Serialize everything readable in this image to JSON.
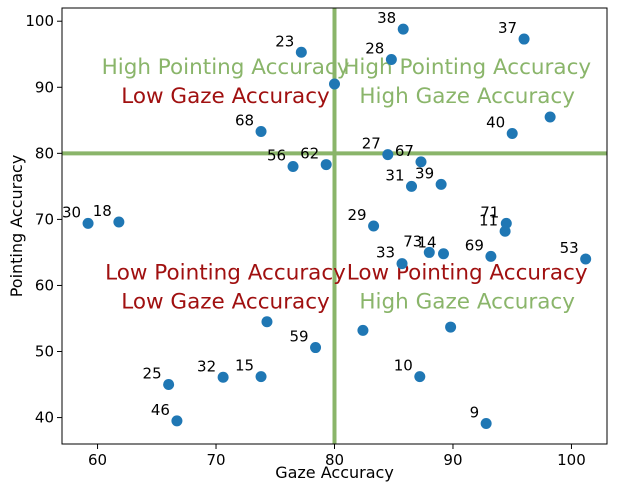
{
  "chart_data": {
    "type": "scatter",
    "xlabel": "Gaze Accuracy",
    "ylabel": "Pointing Accuracy",
    "xlim": [
      57,
      103
    ],
    "ylim": [
      36,
      102
    ],
    "xticks": [
      "60",
      "70",
      "80",
      "90",
      "100"
    ],
    "yticks": [
      "40",
      "50",
      "60",
      "70",
      "80",
      "90",
      "100"
    ],
    "grid": false,
    "point_color": "#1f77b4",
    "threshold_color": "#8ab56a",
    "threshold_x": 80,
    "threshold_y": 80,
    "quadrant_labels": [
      {
        "line1": "High Pointing Accuracy",
        "line2": "Low Gaze Accuracy",
        "color1": "#8ab56a",
        "color2": "#a01010",
        "x": 70.8,
        "y1": 92.0,
        "y2": 87.6
      },
      {
        "line1": "High Pointing Accuracy",
        "line2": "High Gaze Accuracy",
        "color1": "#8ab56a",
        "color2": "#8ab56a",
        "x": 91.2,
        "y1": 92.0,
        "y2": 87.6
      },
      {
        "line1": "Low Pointing Accuracy",
        "line2": "Low Gaze Accuracy",
        "color1": "#a01010",
        "color2": "#a01010",
        "x": 70.8,
        "y1": 60.9,
        "y2": 56.5
      },
      {
        "line1": "Low Pointing Accuracy",
        "line2": "High Gaze Accuracy",
        "color1": "#a01010",
        "color2": "#8ab56a",
        "x": 91.2,
        "y1": 60.9,
        "y2": 56.5
      }
    ],
    "points": [
      {
        "label": "38",
        "x": 85.8,
        "y": 98.8
      },
      {
        "label": "37",
        "x": 96.0,
        "y": 97.3
      },
      {
        "label": "23",
        "x": 77.2,
        "y": 95.3
      },
      {
        "label": "28",
        "x": 84.8,
        "y": 94.2
      },
      {
        "label": "",
        "x": 80.0,
        "y": 90.5
      },
      {
        "label": "",
        "x": 98.2,
        "y": 85.5
      },
      {
        "label": "40",
        "x": 95.0,
        "y": 83.0
      },
      {
        "label": "68",
        "x": 73.8,
        "y": 83.3
      },
      {
        "label": "27",
        "x": 84.5,
        "y": 79.8
      },
      {
        "label": "67",
        "x": 87.3,
        "y": 78.7
      },
      {
        "label": "56",
        "x": 76.5,
        "y": 78.0
      },
      {
        "label": "62",
        "x": 79.3,
        "y": 78.3
      },
      {
        "label": "31",
        "x": 86.5,
        "y": 75.0
      },
      {
        "label": "39",
        "x": 89.0,
        "y": 75.3
      },
      {
        "label": "30",
        "x": 59.2,
        "y": 69.4
      },
      {
        "label": "18",
        "x": 61.8,
        "y": 69.6
      },
      {
        "label": "29",
        "x": 83.3,
        "y": 69.0
      },
      {
        "label": "71",
        "x": 94.5,
        "y": 69.4
      },
      {
        "label": "11",
        "x": 94.4,
        "y": 68.2
      },
      {
        "label": "73",
        "x": 88.0,
        "y": 65.0
      },
      {
        "label": "14",
        "x": 89.2,
        "y": 64.8
      },
      {
        "label": "69",
        "x": 93.2,
        "y": 64.4
      },
      {
        "label": "53",
        "x": 101.2,
        "y": 64.0
      },
      {
        "label": "33",
        "x": 85.7,
        "y": 63.3
      },
      {
        "label": "",
        "x": 74.3,
        "y": 54.5
      },
      {
        "label": "",
        "x": 82.4,
        "y": 53.2
      },
      {
        "label": "",
        "x": 89.8,
        "y": 53.7
      },
      {
        "label": "59",
        "x": 78.4,
        "y": 50.6
      },
      {
        "label": "10",
        "x": 87.2,
        "y": 46.2
      },
      {
        "label": "25",
        "x": 66.0,
        "y": 45.0
      },
      {
        "label": "32",
        "x": 70.6,
        "y": 46.1
      },
      {
        "label": "15",
        "x": 73.8,
        "y": 46.2
      },
      {
        "label": "46",
        "x": 66.7,
        "y": 39.5
      },
      {
        "label": "9",
        "x": 92.8,
        "y": 39.1
      }
    ]
  }
}
